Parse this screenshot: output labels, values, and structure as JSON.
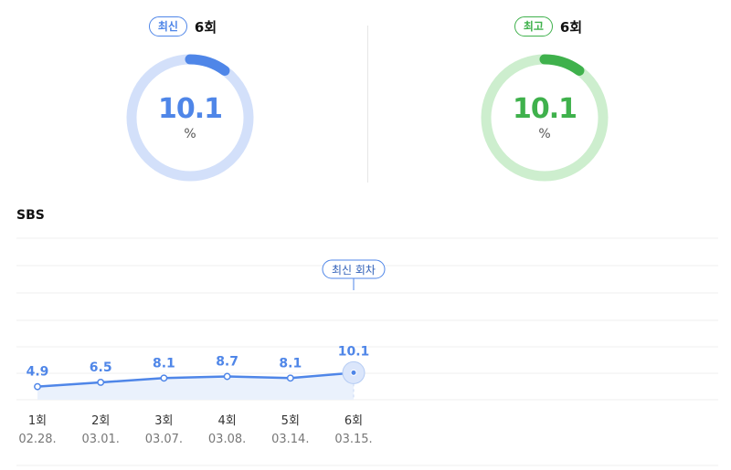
{
  "summary": {
    "latest": {
      "badge": "최신",
      "episode": "6회",
      "value": "10.1",
      "unit": "%",
      "fraction": 0.101,
      "color": "#4f86e8",
      "track": "#d3e0fa"
    },
    "best": {
      "badge": "최고",
      "episode": "6회",
      "value": "10.1",
      "unit": "%",
      "fraction": 0.101,
      "color": "#3fb14c",
      "track": "#cdeece"
    }
  },
  "channel": "SBS",
  "chart_data": {
    "type": "area",
    "categories": [
      "1회",
      "2회",
      "3회",
      "4회",
      "5회",
      "6회"
    ],
    "dates": [
      "02.28.",
      "03.01.",
      "03.07.",
      "03.08.",
      "03.14.",
      "03.15."
    ],
    "values": [
      4.9,
      6.5,
      8.1,
      8.7,
      8.1,
      10.1
    ],
    "value_labels": [
      "4.9",
      "6.5",
      "8.1",
      "8.7",
      "8.1",
      "10.1"
    ],
    "highlight_index": 5,
    "highlight_label": "최신 회차",
    "line_color": "#4f86e8",
    "grid": true,
    "ylim": [
      0,
      30
    ]
  }
}
